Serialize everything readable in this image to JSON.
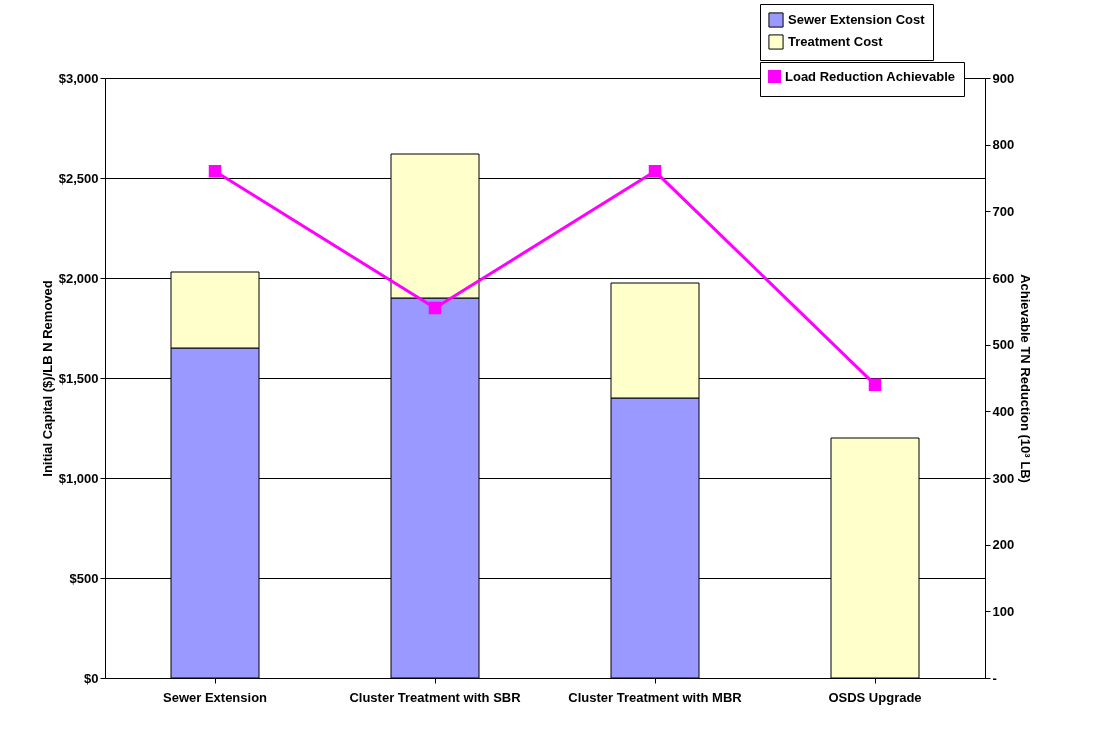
{
  "chart_data": {
    "type": "bar",
    "ylabel": "Initial Capital ($)/LB N Removed",
    "y2label": "Achievable TN Reduction (10³ LB)",
    "categories": [
      "Sewer Extension",
      "Cluster Treatment with SBR",
      "Cluster Treatment with MBR",
      "OSDS Upgrade"
    ],
    "stacked": true,
    "grid": "y",
    "legend": "top right",
    "ylim": [
      0,
      3000
    ],
    "yticks": [
      {
        "value": 0,
        "label": "$0"
      },
      {
        "value": 500,
        "label": "$500"
      },
      {
        "value": 1000,
        "label": "$1,000"
      },
      {
        "value": 1500,
        "label": "$1,500"
      },
      {
        "value": 2000,
        "label": "$2,000"
      },
      {
        "value": 2500,
        "label": "$2,500"
      },
      {
        "value": 3000,
        "label": "$3,000"
      }
    ],
    "y2lim": [
      0,
      900
    ],
    "y2ticks": [
      {
        "value": 0,
        "label": "-"
      },
      100,
      200,
      300,
      400,
      500,
      600,
      700,
      800,
      900
    ],
    "series": [
      {
        "name": "Sewer Extension Cost",
        "color": "#9999ff",
        "values": [
          1650,
          1900,
          1400,
          null
        ]
      },
      {
        "name": "Treatment Cost",
        "color": "#ffffcc",
        "values": [
          380,
          720,
          575,
          1200
        ]
      },
      {
        "name": "Load Reduction Achievable",
        "type": "line",
        "axis": "y2",
        "color": "#ff00ff",
        "marker": "square",
        "values": [
          760,
          555,
          760,
          440
        ]
      }
    ]
  }
}
